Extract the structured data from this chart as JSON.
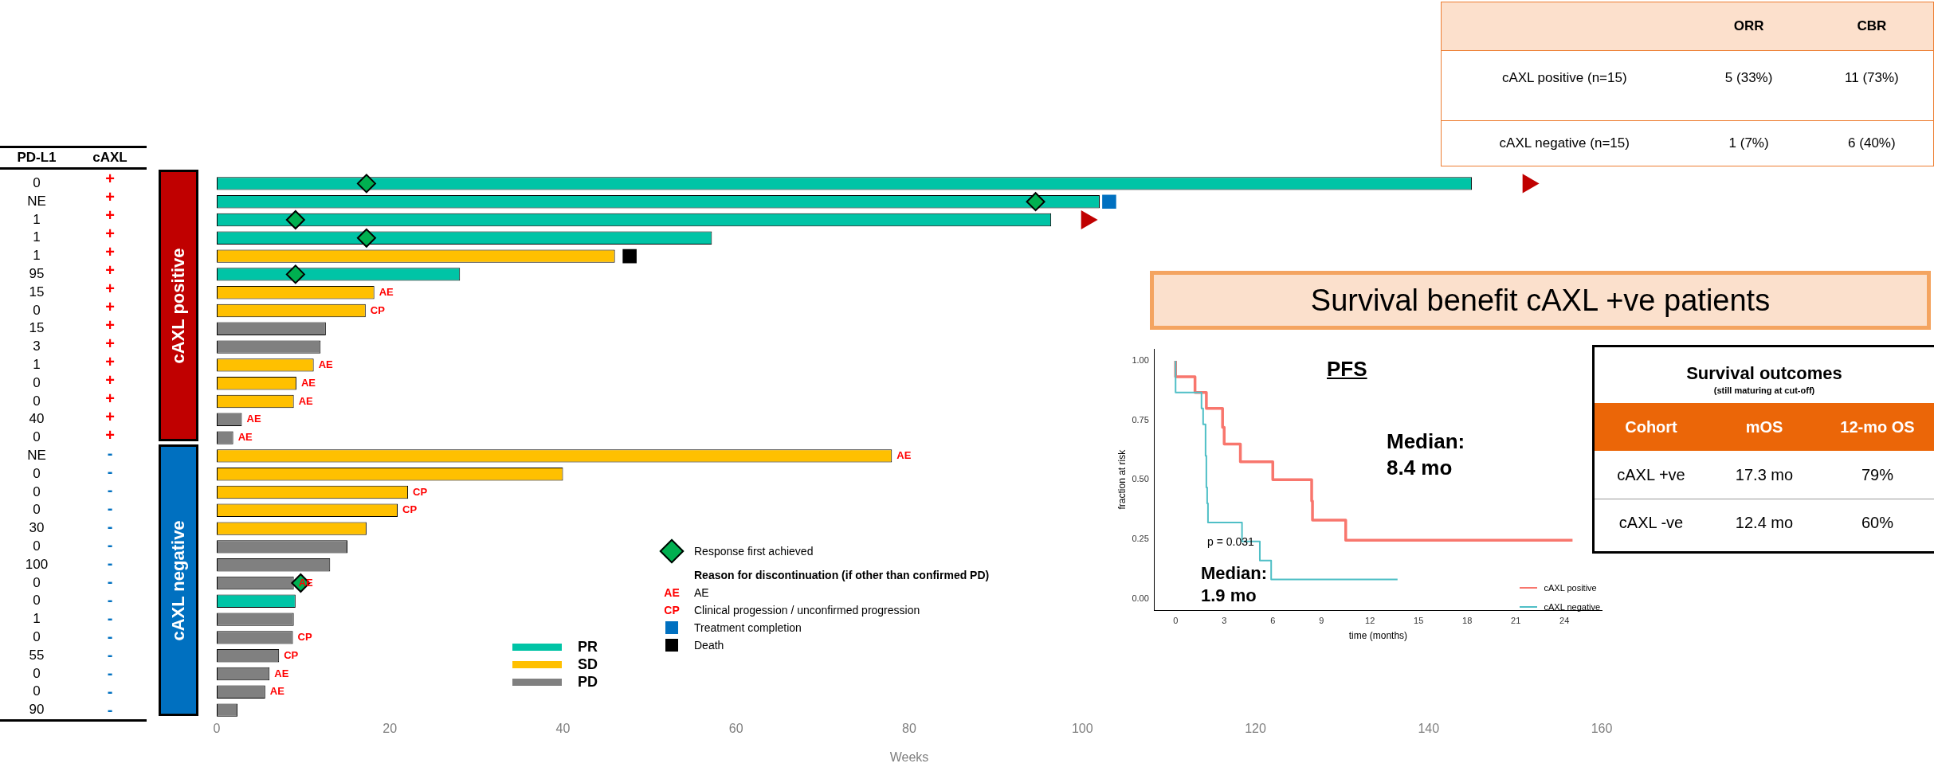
{
  "chart_data": [
    {
      "type": "other",
      "annotations": [
        "ORR",
        "CBR",
        "cAXL positive (n=15)",
        "5 (33%)",
        "11 (73%)",
        "cAXL negative (n=15)",
        "1 (7%)",
        "6 (40%)"
      ]
    },
    {
      "type": "other",
      "annotations": [
        "PD-L1",
        "cAXL",
        "+",
        "+",
        "+",
        "+",
        "+",
        "+",
        "+",
        "+",
        "+",
        "+",
        "+",
        "+",
        "+",
        "+",
        "+",
        "-",
        "-",
        "-",
        "-",
        "-",
        "-",
        "-",
        "-",
        "-",
        "-",
        "-",
        "-",
        "-",
        "-",
        "-"
      ],
      "colors": [
        "#ff0000",
        "#ff0000",
        "#ff0000",
        "#ff0000",
        "#ff0000",
        "#ff0000",
        "#ff0000",
        "#ff0000",
        "#ff0000",
        "#ff0000",
        "#ff0000",
        "#ff0000",
        "#ff0000",
        "#ff0000",
        "#ff0000",
        "#0070c0",
        "#0070c0",
        "#0070c0",
        "#0070c0",
        "#0070c0",
        "#0070c0",
        "#0070c0",
        "#0070c0",
        "#0070c0",
        "#0070c0",
        "#0070c0",
        "#0070c0",
        "#0070c0",
        "#0070c0",
        "#0070c0"
      ]
    },
    {
      "type": "bar",
      "orientation": "horizontal",
      "xlabel": "Weeks",
      "categories": [
        "0",
        "NE",
        "1",
        "1",
        "1",
        "95",
        "15",
        "0",
        "15",
        "3",
        "1",
        "0",
        "0",
        "40",
        "0",
        "NE",
        "0",
        "0",
        "0",
        "30",
        "0",
        "100",
        "0",
        "0",
        "1",
        "0",
        "55",
        "0",
        "0",
        "90"
      ],
      "xlim": [
        0,
        160
      ],
      "xticks": [
        0,
        20,
        40,
        60,
        80,
        100,
        120,
        140,
        160
      ],
      "legend": "bottom",
      "grid": false,
      "series": [
        {
          "name": "PR",
          "color": "#00c4a6",
          "values": [
            145,
            102,
            96.4,
            57.2,
            null,
            28.1,
            null,
            null,
            null,
            null,
            null,
            null,
            null,
            null,
            null,
            null,
            null,
            null,
            null,
            null,
            null,
            null,
            null,
            9.1,
            null,
            null,
            null,
            null,
            null,
            null
          ]
        },
        {
          "name": "SD",
          "color": "#ffc000",
          "values": [
            null,
            null,
            null,
            null,
            46,
            null,
            18.2,
            17.2,
            null,
            null,
            11.2,
            9.2,
            8.9,
            null,
            null,
            78,
            40,
            22.1,
            20.9,
            17.3,
            null,
            null,
            null,
            null,
            null,
            null,
            null,
            null,
            null,
            null
          ],
          "value_labels": [
            null,
            null,
            null,
            null,
            null,
            null,
            "AE",
            "CP",
            null,
            null,
            "AE",
            "AE",
            "AE",
            null,
            null,
            "AE",
            null,
            "CP",
            "CP",
            null,
            null,
            null,
            null,
            null,
            null,
            null,
            null,
            null,
            null,
            null
          ]
        },
        {
          "name": "PD",
          "color": "#808080",
          "values": [
            null,
            null,
            null,
            null,
            null,
            null,
            null,
            null,
            12.6,
            12,
            null,
            null,
            null,
            2.9,
            1.9,
            null,
            null,
            null,
            null,
            null,
            15.1,
            13.1,
            8.9,
            null,
            8.9,
            8.8,
            7.2,
            6.1,
            5.6,
            2.4
          ],
          "value_labels": [
            null,
            null,
            null,
            null,
            null,
            null,
            null,
            null,
            null,
            null,
            null,
            null,
            null,
            "AE",
            "AE",
            null,
            null,
            null,
            null,
            null,
            null,
            null,
            "AE",
            null,
            null,
            "CP",
            "CP",
            "AE",
            "AE",
            null
          ]
        },
        {
          "name": "Response first achieved",
          "type": "scatter",
          "marker": "diamond",
          "color": "#00b050",
          "values": [
            17.3,
            94.6,
            9.1,
            17.3,
            null,
            9.1,
            null,
            null,
            null,
            null,
            null,
            null,
            null,
            null,
            null,
            null,
            null,
            null,
            null,
            null,
            null,
            null,
            9.7,
            null,
            null,
            null,
            null,
            null,
            null,
            null
          ]
        },
        {
          "name": "Treatment completion",
          "type": "scatter",
          "marker": "square",
          "color": "#0070c0",
          "values": [
            null,
            103.1,
            null,
            null,
            null,
            null,
            null,
            null,
            null,
            null,
            null,
            null,
            null,
            null,
            null,
            null,
            null,
            null,
            null,
            null,
            null,
            null,
            null,
            null,
            null,
            null,
            null,
            null,
            null,
            null
          ]
        },
        {
          "name": "Death",
          "type": "scatter",
          "marker": "square",
          "color": "#000000",
          "values": [
            null,
            null,
            null,
            null,
            47.7,
            null,
            null,
            null,
            null,
            null,
            null,
            null,
            null,
            null,
            null,
            null,
            null,
            null,
            null,
            null,
            null,
            null,
            null,
            null,
            null,
            null,
            null,
            null,
            null,
            null
          ]
        },
        {
          "type": "scatter",
          "marker": "triangle",
          "color": "#c00000",
          "values": [
            151.5,
            null,
            100.5,
            null,
            null,
            null,
            null,
            null,
            null,
            null,
            null,
            null,
            null,
            null,
            null,
            null,
            null,
            null,
            null,
            null,
            null,
            null,
            null,
            null,
            null,
            null,
            null,
            null,
            null,
            null
          ]
        }
      ],
      "annotations": [
        "Reason for discontinuation (if other than confirmed PD)",
        "AE",
        "AE",
        "CP",
        "Clinical progession / unconfirmed progression",
        "cAXL positive",
        "cAXL negative"
      ]
    },
    {
      "type": "other",
      "title": "Survival benefit cAXL +ve patients"
    },
    {
      "type": "step",
      "title": "PFS",
      "xlabel": "time (months)",
      "ylabel": "fraction at risk",
      "xlim": [
        -1.3,
        26.3
      ],
      "xticks": [
        0,
        3,
        6,
        9,
        12,
        15,
        18,
        21,
        24
      ],
      "ylim": [
        -0.05,
        1.05
      ],
      "yticks": [
        {
          "value": 0,
          "label": "0.00"
        },
        0.25,
        {
          "value": 0.5,
          "label": "0.50"
        },
        0.75,
        {
          "value": 1,
          "label": "1.00"
        }
      ],
      "grid": false,
      "legend": "bottom right",
      "series": [
        {
          "name": "cAXL positive",
          "color": "#f8766d",
          "x": [
            0,
            1.2,
            1.9,
            2.9,
            3.0,
            4.0,
            6.0,
            8.4,
            8.45,
            10.5,
            12.0,
            24.5
          ],
          "values": [
            1,
            0.933,
            0.867,
            0.8,
            0.72,
            0.65,
            0.575,
            0.5,
            0.41,
            0.33,
            0.245,
            0.245
          ]
        },
        {
          "name": "cAXL negative",
          "color": "#4fbfc6",
          "x": [
            0,
            1.6,
            1.7,
            1.85,
            1.9,
            1.95,
            2.0,
            4.1,
            5.2,
            5.9,
            9.6,
            13.7
          ],
          "values": [
            1,
            0.867,
            0.8,
            0.733,
            0.6,
            0.467,
            0.4,
            0.32,
            0.24,
            0.16,
            0.08,
            0.08
          ]
        }
      ],
      "annotations": [
        "p = 0.031",
        "Median:\n8.4 mo",
        "Median:\n1.9 mo"
      ]
    },
    {
      "type": "other",
      "title": "Survival outcomes",
      "subtitle": "(still maturing at cut-off)",
      "annotations": [
        "Cohort",
        "mOS",
        "12-mo OS",
        "cAXL +ve",
        "17.3 mo",
        "79%",
        "cAXL -ve",
        "12.4 mo",
        "60%"
      ]
    }
  ]
}
